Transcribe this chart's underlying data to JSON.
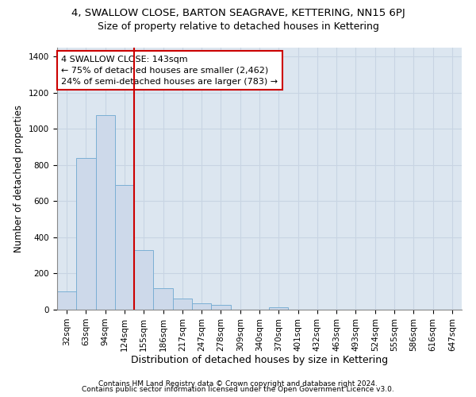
{
  "title": "4, SWALLOW CLOSE, BARTON SEAGRAVE, KETTERING, NN15 6PJ",
  "subtitle": "Size of property relative to detached houses in Kettering",
  "xlabel": "Distribution of detached houses by size in Kettering",
  "ylabel": "Number of detached properties",
  "categories": [
    "32sqm",
    "63sqm",
    "94sqm",
    "124sqm",
    "155sqm",
    "186sqm",
    "217sqm",
    "247sqm",
    "278sqm",
    "309sqm",
    "340sqm",
    "370sqm",
    "401sqm",
    "432sqm",
    "463sqm",
    "493sqm",
    "524sqm",
    "555sqm",
    "586sqm",
    "616sqm",
    "647sqm"
  ],
  "values": [
    100,
    840,
    1075,
    690,
    330,
    120,
    60,
    35,
    25,
    0,
    0,
    15,
    0,
    0,
    0,
    0,
    0,
    0,
    0,
    0,
    0
  ],
  "bar_color": "#cdd9ea",
  "bar_edge_color": "#7bafd4",
  "vline_color": "#cc0000",
  "vline_x": 3.5,
  "annotation_line1": "4 SWALLOW CLOSE: 143sqm",
  "annotation_line2": "← 75% of detached houses are smaller (2,462)",
  "annotation_line3": "24% of semi-detached houses are larger (783) →",
  "annotation_box_color": "#cc0000",
  "ylim": [
    0,
    1450
  ],
  "yticks": [
    0,
    200,
    400,
    600,
    800,
    1000,
    1200,
    1400
  ],
  "grid_color": "#c8d4e3",
  "background_color": "#dce6f0",
  "footer1": "Contains HM Land Registry data © Crown copyright and database right 2024.",
  "footer2": "Contains public sector information licensed under the Open Government Licence v3.0.",
  "title_fontsize": 9.5,
  "subtitle_fontsize": 9,
  "ylabel_fontsize": 8.5,
  "xlabel_fontsize": 9,
  "tick_fontsize": 7.5,
  "footer_fontsize": 6.5
}
